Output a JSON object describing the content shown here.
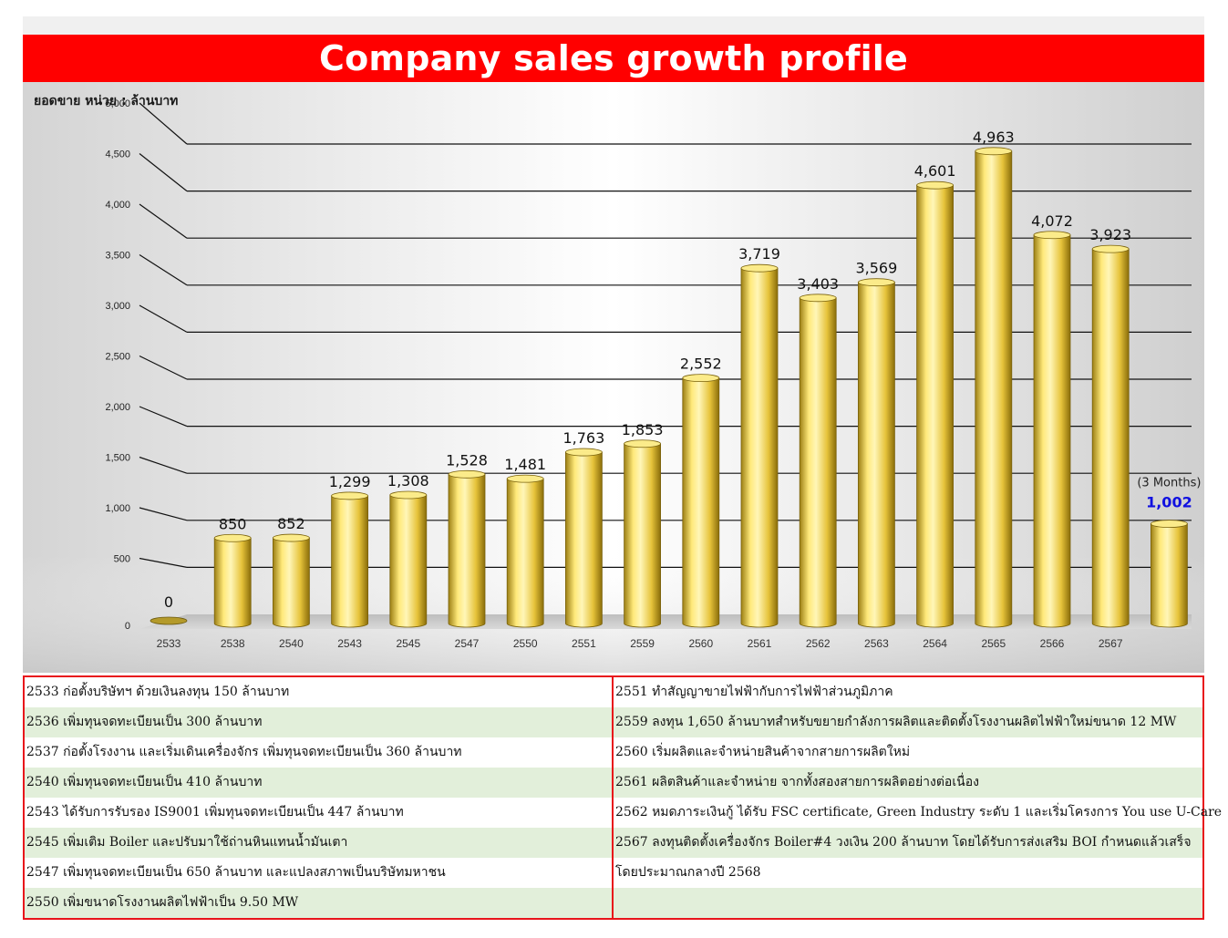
{
  "title": "Company sales growth profile",
  "chart_data": {
    "type": "bar",
    "ylabel": "ยอดขาย หน่วย : ล้านบาท",
    "ylim": [
      0,
      5000
    ],
    "yticks": [
      0,
      500,
      1000,
      1500,
      2000,
      2500,
      3000,
      3500,
      4000,
      4500,
      5000
    ],
    "ytick_labels": [
      "0",
      "500",
      "1,000",
      "1,500",
      "2,000",
      "2,500",
      "3,000",
      "3,500",
      "4,000",
      "4,500",
      "5,000"
    ],
    "grid": true,
    "categories": [
      "2533",
      "2538",
      "2540",
      "2543",
      "2545",
      "2547",
      "2550",
      "2551",
      "2559",
      "2560",
      "2561",
      "2562",
      "2563",
      "2564",
      "2565",
      "2566",
      "2567"
    ],
    "values": [
      0,
      850,
      852,
      1299,
      1308,
      1528,
      1481,
      1763,
      1853,
      2552,
      3719,
      3403,
      3569,
      4601,
      4963,
      4072,
      3923
    ],
    "value_labels": [
      "0",
      "850",
      "852",
      "1,299",
      "1,308",
      "1,528",
      "1,481",
      "1,763",
      "1,853",
      "2,552",
      "3,719",
      "3,403",
      "3,569",
      "4,601",
      "4,963",
      "4,072",
      "3,923"
    ],
    "extra_bar": {
      "value": 1002,
      "value_label": "1,002",
      "note": "(3 Months)",
      "label_color": "#1010e0"
    },
    "bar_color": "#f5d94a"
  },
  "notes": {
    "left": [
      "2533 ก่อตั้งบริษัทฯ ด้วยเงินลงทุน 150 ล้านบาท",
      "2536 เพิ่มทุนจดทะเบียนเป็น 300 ล้านบาท",
      "2537 ก่อตั้งโรงงาน และเริ่มเดินเครื่องจักร เพิ่มทุนจดทะเบียนเป็น 360 ล้านบาท",
      "2540 เพิ่มทุนจดทะเบียนเป็น 410 ล้านบาท",
      "2543 ได้รับการรับรอง IS9001 เพิ่มทุนจดทะเบียนเป็น 447 ล้านบาท",
      "2545 เพิ่มเติม Boiler และปรับมาใช้ถ่านหินแทนน้ำมันเตา",
      "2547 เพิ่มทุนจดทะเบียนเป็น 650 ล้านบาท และแปลงสภาพเป็นบริษัทมหาชน",
      "2550 เพิ่มขนาดโรงงานผลิตไฟฟ้าเป็น 9.50 MW"
    ],
    "right": [
      "2551 ทำสัญญาขายไฟฟ้ากับการไฟฟ้าส่วนภูมิภาค",
      "2559 ลงทุน 1,650 ล้านบาทสำหรับขยายกำลังการผลิตและติดตั้งโรงงานผลิตไฟฟ้าใหม่ขนาด 12 MW",
      "2560 เริ่มผลิตและจำหน่ายสินค้าจากสายการผลิตใหม่",
      "2561 ผลิตสินค้าและจำหน่าย จากทั้งสองสายการผลิตอย่างต่อเนื่อง",
      "2562 หมดภาระเงินกู้ ได้รับ FSC certificate, Green Industry ระดับ 1 และเริ่มโครงการ You use U-Care",
      "2567 ลงทุนติดตั้งเครื่องจักร Boiler#4 วงเงิน 200 ล้านบาท โดยได้รับการส่งเสริม BOI กำหนดแล้วเสร็จ",
      "โดยประมาณกลางปี 2568",
      ""
    ]
  }
}
